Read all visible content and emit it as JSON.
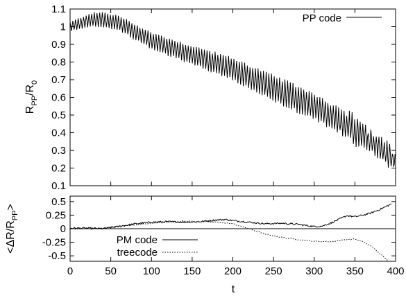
{
  "chart_data": [
    {
      "type": "line",
      "panel": "top",
      "title": "",
      "xlabel": "",
      "ylabel_main": "R",
      "ylabel_sub1": "PP",
      "ylabel_mid": "/R",
      "ylabel_sub2": "0",
      "xlim": [
        0,
        400
      ],
      "ylim": [
        0.1,
        1.1
      ],
      "xticks": [
        "0",
        "50",
        "100",
        "150",
        "200",
        "250",
        "300",
        "350",
        "400"
      ],
      "yticks": [
        "0.1",
        "0.2",
        "0.3",
        "0.4",
        "0.5",
        "0.6",
        "0.7",
        "0.8",
        "0.9",
        "1",
        "1.1"
      ],
      "ytick_values": [
        0.1,
        0.2,
        0.3,
        0.4,
        0.5,
        0.6,
        0.7,
        0.8,
        0.9,
        1.0,
        1.1
      ],
      "grid": false,
      "legend_position": "top-right",
      "series": [
        {
          "name": "PP code",
          "style": "solid",
          "oscillation_period": 3.3,
          "envelope": {
            "x": [
              0,
              25,
              40,
              60,
              100,
              150,
              200,
              250,
              300,
              340,
              370,
              390,
              400
            ],
            "mean": [
              1.0,
              1.04,
              1.04,
              1.02,
              0.92,
              0.84,
              0.76,
              0.65,
              0.55,
              0.44,
              0.35,
              0.28,
              0.23
            ],
            "amp": [
              0.025,
              0.035,
              0.04,
              0.04,
              0.045,
              0.05,
              0.06,
              0.07,
              0.07,
              0.07,
              0.06,
              0.06,
              0.04
            ]
          }
        }
      ]
    },
    {
      "type": "line",
      "panel": "bottom",
      "title": "",
      "xlabel": "t",
      "ylabel_prefix": "<ΔR/R",
      "ylabel_sub": "PP",
      "ylabel_suffix": ">",
      "xlim": [
        0,
        400
      ],
      "ylim": [
        -0.6,
        0.6
      ],
      "xticks": [
        "0",
        "50",
        "100",
        "150",
        "200",
        "250",
        "300",
        "350",
        "400"
      ],
      "yticks": [
        "0.5",
        "0.25",
        "0",
        "-0.25",
        "-0.5"
      ],
      "ytick_values": [
        0.5,
        0.25,
        0,
        -0.25,
        -0.5
      ],
      "grid": false,
      "zero_line": true,
      "legend_position": "bottom-left",
      "series": [
        {
          "name": "PM code",
          "style": "solid",
          "x": [
            0,
            20,
            40,
            60,
            80,
            100,
            120,
            140,
            160,
            180,
            190,
            200,
            220,
            240,
            260,
            280,
            300,
            310,
            320,
            330,
            340,
            350,
            360,
            370,
            380,
            390,
            395
          ],
          "y": [
            0.01,
            0.01,
            0.0,
            0.04,
            0.09,
            0.12,
            0.13,
            0.12,
            0.13,
            0.16,
            0.17,
            0.15,
            0.12,
            0.09,
            0.1,
            0.08,
            0.04,
            0.05,
            0.1,
            0.17,
            0.24,
            0.22,
            0.25,
            0.29,
            0.35,
            0.42,
            0.46
          ],
          "noise": 0.015
        },
        {
          "name": "treecode",
          "style": "dotted",
          "x": [
            0,
            20,
            40,
            60,
            80,
            100,
            120,
            140,
            160,
            180,
            200,
            220,
            240,
            260,
            280,
            300,
            320,
            340,
            350,
            360,
            370,
            380,
            390
          ],
          "y": [
            0.0,
            0.0,
            0.01,
            0.05,
            0.07,
            0.1,
            0.12,
            0.14,
            0.13,
            0.12,
            0.09,
            0.0,
            -0.1,
            -0.16,
            -0.2,
            -0.23,
            -0.24,
            -0.2,
            -0.19,
            -0.24,
            -0.32,
            -0.45,
            -0.58
          ],
          "noise": 0.008
        }
      ]
    }
  ]
}
